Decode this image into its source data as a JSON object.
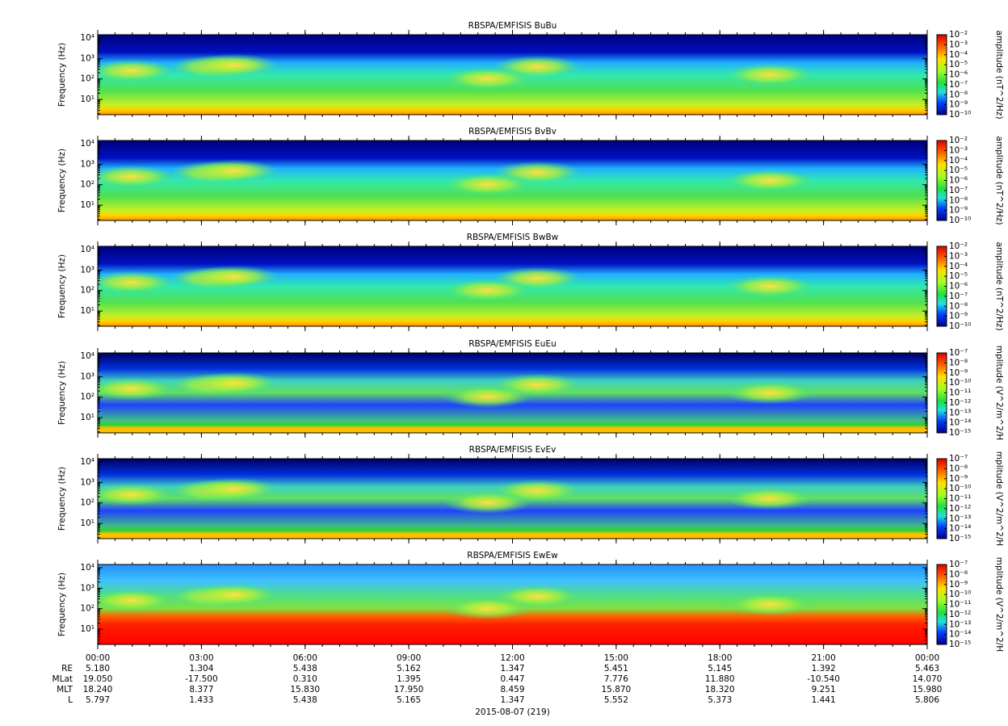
{
  "chart_data": [
    {
      "type": "spectrogram",
      "title": "RBSPA/EMFISIS  BuBu",
      "y_label": "Frequency (Hz)",
      "yscale": "log",
      "ylim": [
        1.8,
        14400
      ],
      "yticks": [
        {
          "value": 10,
          "label": "10¹"
        },
        {
          "value": 100,
          "label": "10²"
        },
        {
          "value": 1000,
          "label": "10³"
        },
        {
          "value": 10000,
          "label": "10⁴"
        }
      ],
      "colorbar": {
        "label": "amplitude (nT^2/Hz)",
        "lim": [
          1e-10,
          0.01
        ],
        "ticks": [
          {
            "value": 0.01,
            "label": "10⁻²"
          },
          {
            "value": 0.001,
            "label": "10⁻³"
          },
          {
            "value": 0.0001,
            "label": "10⁻⁴"
          },
          {
            "value": 1e-05,
            "label": "10⁻⁵"
          },
          {
            "value": 1e-06,
            "label": "10⁻⁶"
          },
          {
            "value": 1e-07,
            "label": "10⁻⁷"
          },
          {
            "value": 1e-08,
            "label": "10⁻⁸"
          },
          {
            "value": 1e-09,
            "label": "10⁻⁹"
          },
          {
            "value": 1e-10,
            "label": "10⁻¹⁰"
          }
        ]
      }
    },
    {
      "type": "spectrogram",
      "title": "RBSPA/EMFISIS  BvBv",
      "y_label": "Frequency (Hz)",
      "yscale": "log",
      "ylim": [
        1.8,
        14400
      ],
      "yticks": [
        {
          "value": 10,
          "label": "10¹"
        },
        {
          "value": 100,
          "label": "10²"
        },
        {
          "value": 1000,
          "label": "10³"
        },
        {
          "value": 10000,
          "label": "10⁴"
        }
      ],
      "colorbar": {
        "label": "amplitude (nT^2/Hz)",
        "lim": [
          1e-10,
          0.01
        ],
        "ticks": [
          {
            "value": 0.01,
            "label": "10⁻²"
          },
          {
            "value": 0.001,
            "label": "10⁻³"
          },
          {
            "value": 0.0001,
            "label": "10⁻⁴"
          },
          {
            "value": 1e-05,
            "label": "10⁻⁵"
          },
          {
            "value": 1e-06,
            "label": "10⁻⁶"
          },
          {
            "value": 1e-07,
            "label": "10⁻⁷"
          },
          {
            "value": 1e-08,
            "label": "10⁻⁸"
          },
          {
            "value": 1e-09,
            "label": "10⁻⁹"
          },
          {
            "value": 1e-10,
            "label": "10⁻¹⁰"
          }
        ]
      }
    },
    {
      "type": "spectrogram",
      "title": "RBSPA/EMFISIS  BwBw",
      "y_label": "Frequency (Hz)",
      "yscale": "log",
      "ylim": [
        1.8,
        14400
      ],
      "yticks": [
        {
          "value": 10,
          "label": "10¹"
        },
        {
          "value": 100,
          "label": "10²"
        },
        {
          "value": 1000,
          "label": "10³"
        },
        {
          "value": 10000,
          "label": "10⁴"
        }
      ],
      "colorbar": {
        "label": "amplitude (nT^2/Hz)",
        "lim": [
          1e-10,
          0.01
        ],
        "ticks": [
          {
            "value": 0.01,
            "label": "10⁻²"
          },
          {
            "value": 0.001,
            "label": "10⁻³"
          },
          {
            "value": 0.0001,
            "label": "10⁻⁴"
          },
          {
            "value": 1e-05,
            "label": "10⁻⁵"
          },
          {
            "value": 1e-06,
            "label": "10⁻⁶"
          },
          {
            "value": 1e-07,
            "label": "10⁻⁷"
          },
          {
            "value": 1e-08,
            "label": "10⁻⁸"
          },
          {
            "value": 1e-09,
            "label": "10⁻⁹"
          },
          {
            "value": 1e-10,
            "label": "10⁻¹⁰"
          }
        ]
      }
    },
    {
      "type": "spectrogram",
      "title": "RBSPA/EMFISIS  EuEu",
      "y_label": "Frequency (Hz)",
      "yscale": "log",
      "ylim": [
        1.8,
        14400
      ],
      "yticks": [
        {
          "value": 10,
          "label": "10¹"
        },
        {
          "value": 100,
          "label": "10²"
        },
        {
          "value": 1000,
          "label": "10³"
        },
        {
          "value": 10000,
          "label": "10⁴"
        }
      ],
      "colorbar": {
        "label": "mplitude (V^2/m^2/H",
        "lim": [
          1e-15,
          1e-07
        ],
        "ticks": [
          {
            "value": 1e-07,
            "label": "10⁻⁷"
          },
          {
            "value": 1e-08,
            "label": "10⁻⁸"
          },
          {
            "value": 1e-09,
            "label": "10⁻⁹"
          },
          {
            "value": 1e-10,
            "label": "10⁻¹⁰"
          },
          {
            "value": 1e-11,
            "label": "10⁻¹¹"
          },
          {
            "value": 1e-12,
            "label": "10⁻¹²"
          },
          {
            "value": 1e-13,
            "label": "10⁻¹³"
          },
          {
            "value": 1e-14,
            "label": "10⁻¹⁴"
          },
          {
            "value": 1e-15,
            "label": "10⁻¹⁵"
          }
        ]
      }
    },
    {
      "type": "spectrogram",
      "title": "RBSPA/EMFISIS  EvEv",
      "y_label": "Frequency (Hz)",
      "yscale": "log",
      "ylim": [
        1.8,
        14400
      ],
      "yticks": [
        {
          "value": 10,
          "label": "10¹"
        },
        {
          "value": 100,
          "label": "10²"
        },
        {
          "value": 1000,
          "label": "10³"
        },
        {
          "value": 10000,
          "label": "10⁴"
        }
      ],
      "colorbar": {
        "label": "mplitude (V^2/m^2/H",
        "lim": [
          1e-15,
          1e-07
        ],
        "ticks": [
          {
            "value": 1e-07,
            "label": "10⁻⁷"
          },
          {
            "value": 1e-08,
            "label": "10⁻⁸"
          },
          {
            "value": 1e-09,
            "label": "10⁻⁹"
          },
          {
            "value": 1e-10,
            "label": "10⁻¹⁰"
          },
          {
            "value": 1e-11,
            "label": "10⁻¹¹"
          },
          {
            "value": 1e-12,
            "label": "10⁻¹²"
          },
          {
            "value": 1e-13,
            "label": "10⁻¹³"
          },
          {
            "value": 1e-14,
            "label": "10⁻¹⁴"
          },
          {
            "value": 1e-15,
            "label": "10⁻¹⁵"
          }
        ]
      }
    },
    {
      "type": "spectrogram",
      "title": "RBSPA/EMFISIS  EwEw",
      "y_label": "Frequency (Hz)",
      "yscale": "log",
      "ylim": [
        1.8,
        14400
      ],
      "yticks": [
        {
          "value": 10,
          "label": "10¹"
        },
        {
          "value": 100,
          "label": "10²"
        },
        {
          "value": 1000,
          "label": "10³"
        },
        {
          "value": 10000,
          "label": "10⁴"
        }
      ],
      "colorbar": {
        "label": "mplitude (V^2/m^2/H",
        "lim": [
          1e-15,
          1e-07
        ],
        "ticks": [
          {
            "value": 1e-07,
            "label": "10⁻⁷"
          },
          {
            "value": 1e-08,
            "label": "10⁻⁸"
          },
          {
            "value": 1e-09,
            "label": "10⁻⁹"
          },
          {
            "value": 1e-10,
            "label": "10⁻¹⁰"
          },
          {
            "value": 1e-11,
            "label": "10⁻¹¹"
          },
          {
            "value": 1e-12,
            "label": "10⁻¹²"
          },
          {
            "value": 1e-13,
            "label": "10⁻¹³"
          },
          {
            "value": 1e-14,
            "label": "10⁻¹⁴"
          },
          {
            "value": 1e-15,
            "label": "10⁻¹⁵"
          }
        ]
      }
    }
  ],
  "time_axis": {
    "xlim": [
      0,
      24
    ],
    "xticks": [
      {
        "value": 0,
        "label": "00:00"
      },
      {
        "value": 3,
        "label": "03:00"
      },
      {
        "value": 6,
        "label": "06:00"
      },
      {
        "value": 9,
        "label": "09:00"
      },
      {
        "value": 12,
        "label": "12:00"
      },
      {
        "value": 15,
        "label": "15:00"
      },
      {
        "value": 18,
        "label": "18:00"
      },
      {
        "value": 21,
        "label": "21:00"
      },
      {
        "value": 24,
        "label": "00:00"
      }
    ],
    "ephemeris": [
      {
        "label": "RE",
        "values": [
          "5.180",
          "1.304",
          "5.438",
          "5.162",
          "1.347",
          "5.451",
          "5.145",
          "1.392",
          "5.463"
        ]
      },
      {
        "label": "MLat",
        "values": [
          "19.050",
          "-17.500",
          "0.310",
          "1.395",
          "0.447",
          "7.776",
          "11.880",
          "-10.540",
          "14.070"
        ]
      },
      {
        "label": "MLT",
        "values": [
          "18.240",
          "8.377",
          "15.830",
          "17.950",
          "8.459",
          "15.870",
          "18.320",
          "9.251",
          "15.980"
        ]
      },
      {
        "label": "L",
        "values": [
          "5.797",
          "1.433",
          "5.438",
          "5.165",
          "1.347",
          "5.552",
          "5.373",
          "1.441",
          "5.806"
        ]
      }
    ],
    "date_label": "2015-08-07 (219)"
  }
}
